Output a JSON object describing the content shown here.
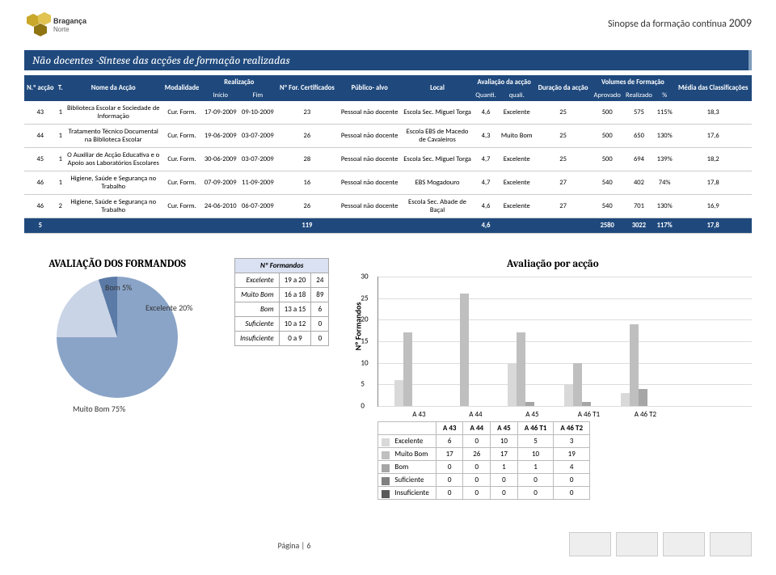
{
  "header": {
    "title_prefix": "Sinopse da formação contínua",
    "year": "2009"
  },
  "section_title": "Não docentes -Síntese das acções de formação realizadas",
  "table": {
    "headers": {
      "n_accao": "N.º\nacção",
      "t": "T.",
      "nome": "Nome da Acção",
      "modalidade": "Modalidade",
      "realizacao": "Realização",
      "inicio": "Início",
      "fim": "Fim",
      "n_for": "Nº For.\nCertificados",
      "publico": "Público-\nalvo",
      "local": "Local",
      "avaliacao": "Avaliação da\nacção",
      "quanti": "Quanti.",
      "quali": "quali.",
      "duracao": "Duração\nda acção",
      "volumes": "Volumes de Formação",
      "aprovado": "Aprovado",
      "realizado": "Realizado",
      "pct": "%",
      "media": "Média\ndas\nClassificações"
    },
    "rows": [
      {
        "n": "43",
        "t": "1",
        "nome": "Biblioteca Escolar e Sociedade de Informação",
        "mod": "Cur. Form.",
        "ini": "17-09-2009",
        "fim": "09-10-2009",
        "cert": "23",
        "pub": "Pessoal não docente",
        "local": "Escola Sec. Miguel Torga",
        "quanti": "4,6",
        "quali": "Excelente",
        "dur": "25",
        "apr": "500",
        "real": "575",
        "pct": "115%",
        "media": "18,3"
      },
      {
        "n": "44",
        "t": "1",
        "nome": "Tratamento Técnico Documental na Biblioteca Escolar",
        "mod": "Cur. Form.",
        "ini": "19-06-2009",
        "fim": "03-07-2009",
        "cert": "26",
        "pub": "Pessoal não docente",
        "local": "Escola EBS de Macedo de Cavaleiros",
        "quanti": "4,3",
        "quali": "Muito Bom",
        "dur": "25",
        "apr": "500",
        "real": "650",
        "pct": "130%",
        "media": "17,6"
      },
      {
        "n": "45",
        "t": "1",
        "nome": "O Auxiliar de Acção Educativa e o Apoio aos Laboratórios Escolares",
        "mod": "Cur. Form.",
        "ini": "30-06-2009",
        "fim": "03-07-2009",
        "cert": "28",
        "pub": "Pessoal não docente",
        "local": "Escola Sec. Miguel Torga",
        "quanti": "4,7",
        "quali": "Excelente",
        "dur": "25",
        "apr": "500",
        "real": "694",
        "pct": "139%",
        "media": "18,2"
      },
      {
        "n": "46",
        "t": "1",
        "nome": "Higiene, Saúde e Segurança no Trabalho",
        "mod": "Cur. Form.",
        "ini": "07-09-2009",
        "fim": "11-09-2009",
        "cert": "16",
        "pub": "Pessoal não docente",
        "local": "EBS Mogadouro",
        "quanti": "4,7",
        "quali": "Excelente",
        "dur": "27",
        "apr": "540",
        "real": "402",
        "pct": "74%",
        "media": "17,8"
      },
      {
        "n": "46",
        "t": "2",
        "nome": "Higiene, Saúde e Segurança no Trabalho",
        "mod": "Cur. Form.",
        "ini": "24-06-2010",
        "fim": "06-07-2009",
        "cert": "26",
        "pub": "Pessoal não docente",
        "local": "Escola Sec. Abade de Baçal",
        "quanti": "4,6",
        "quali": "Excelente",
        "dur": "27",
        "apr": "540",
        "real": "701",
        "pct": "130%",
        "media": "16,9"
      }
    ],
    "total": {
      "n": "5",
      "cert": "119",
      "quanti": "4,6",
      "apr": "2580",
      "real": "3022",
      "pct": "117%",
      "media": "17,8"
    }
  },
  "pie": {
    "title": "AVALIAÇÃO DOS FORMANDOS",
    "slices": [
      {
        "label": "Muito Bom",
        "value": 75,
        "pct": "75%",
        "color": "#8aa4c8"
      },
      {
        "label": "Excelente",
        "value": 20,
        "pct": "20%",
        "color": "#c9d4e6"
      },
      {
        "label": "Bom",
        "value": 5,
        "pct": "5%",
        "color": "#5b7aa6"
      }
    ],
    "muitobom_text": "Muito Bom\n75%",
    "excelente_text": "Excelente\n20%",
    "bom_text": "Bom\n5%"
  },
  "mini": {
    "header": "Nº Formandos",
    "rows": [
      {
        "lbl": "Excelente",
        "range": "19 a 20",
        "n": "24"
      },
      {
        "lbl": "Muito Bom",
        "range": "16 a 18",
        "n": "89"
      },
      {
        "lbl": "Bom",
        "range": "13 a 15",
        "n": "6"
      },
      {
        "lbl": "Suficiente",
        "range": "10 a 12",
        "n": "0"
      },
      {
        "lbl": "Insuficiente",
        "range": "0 a 9",
        "n": "0"
      }
    ]
  },
  "bar": {
    "title": "Avaliação por acção",
    "ylabel": "Nº Formandos",
    "ymax": 30,
    "ytick": 5,
    "categories": [
      "A 43",
      "A 44",
      "A 45",
      "A 46 T1",
      "A 46 T2"
    ],
    "series": [
      {
        "name": "Excelente",
        "color": "#d9d9d9",
        "values": [
          6,
          0,
          10,
          5,
          3
        ]
      },
      {
        "name": "Muito Bom",
        "color": "#bfbfbf",
        "values": [
          17,
          26,
          17,
          10,
          19
        ]
      },
      {
        "name": "Bom",
        "color": "#a6a6a6",
        "values": [
          0,
          0,
          1,
          1,
          4
        ]
      },
      {
        "name": "Suficiente",
        "color": "#808080",
        "values": [
          0,
          0,
          0,
          0,
          0
        ]
      },
      {
        "name": "Insuficiente",
        "color": "#595959",
        "values": [
          0,
          0,
          0,
          0,
          0
        ]
      }
    ]
  },
  "footer": {
    "page": "Página | 6"
  }
}
